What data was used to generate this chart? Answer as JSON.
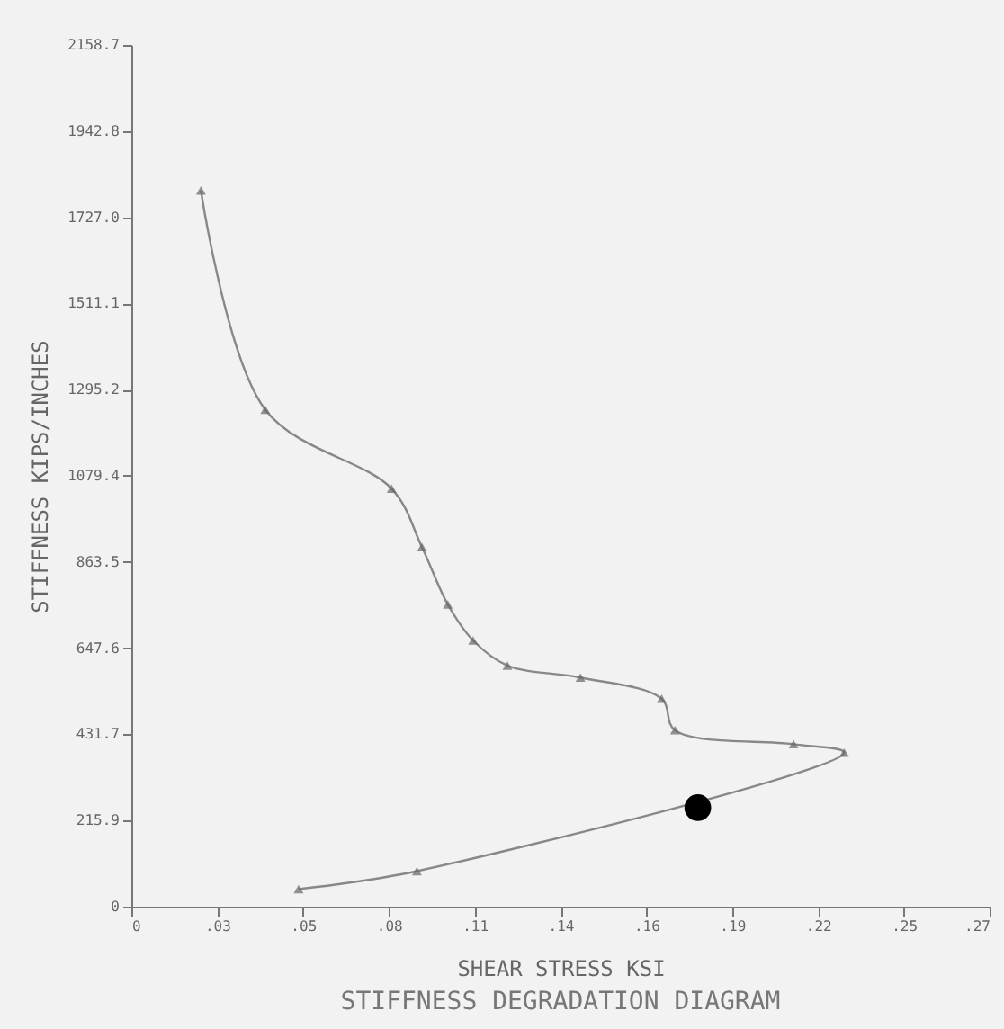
{
  "chart_data": {
    "type": "line",
    "title": "STIFFNESS DEGRADATION DIAGRAM",
    "xlabel": "SHEAR STRESS KSI",
    "ylabel": "STIFFNESS KIPS/INCHES",
    "xlim": [
      0,
      0.275
    ],
    "ylim": [
      0,
      2158.7
    ],
    "xticks": [
      0,
      {
        "value": 0.0275,
        "label": ".03"
      },
      {
        "value": 0.055,
        "label": ".05"
      },
      {
        "value": 0.0825,
        "label": ".08"
      },
      {
        "value": 0.11,
        "label": ".11"
      },
      {
        "value": 0.1375,
        "label": ".14"
      },
      {
        "value": 0.165,
        "label": ".16"
      },
      {
        "value": 0.1925,
        "label": ".19"
      },
      {
        "value": 0.22,
        "label": ".22"
      },
      {
        "value": 0.2475,
        "label": ".25"
      },
      {
        "value": 0.275,
        "label": ".27"
      }
    ],
    "yticks": [
      0,
      215.9,
      431.7,
      647.6,
      863.5,
      1079.4,
      1295.2,
      1511.1,
      {
        "value": 1727,
        "label": "1727.0"
      },
      1942.8,
      2158.7
    ],
    "grid": false,
    "series": [
      {
        "type": "line",
        "marker": "triangle",
        "color": "#888888",
        "x": [
          0.0223,
          0.0429,
          0.0834,
          0.0931,
          0.1014,
          0.1095,
          0.1205,
          0.1439,
          0.1699,
          0.1742,
          0.2122,
          0.2284,
          0.0915,
          0.0536
        ],
        "values": [
          1794,
          1245,
          1047,
          901,
          757,
          667,
          604,
          574,
          521,
          442,
          407,
          386,
          89,
          44
        ]
      },
      {
        "type": "scatter",
        "marker": "circle",
        "color": "#000000",
        "x": [
          0.1815
        ],
        "values": [
          248
        ]
      }
    ]
  }
}
